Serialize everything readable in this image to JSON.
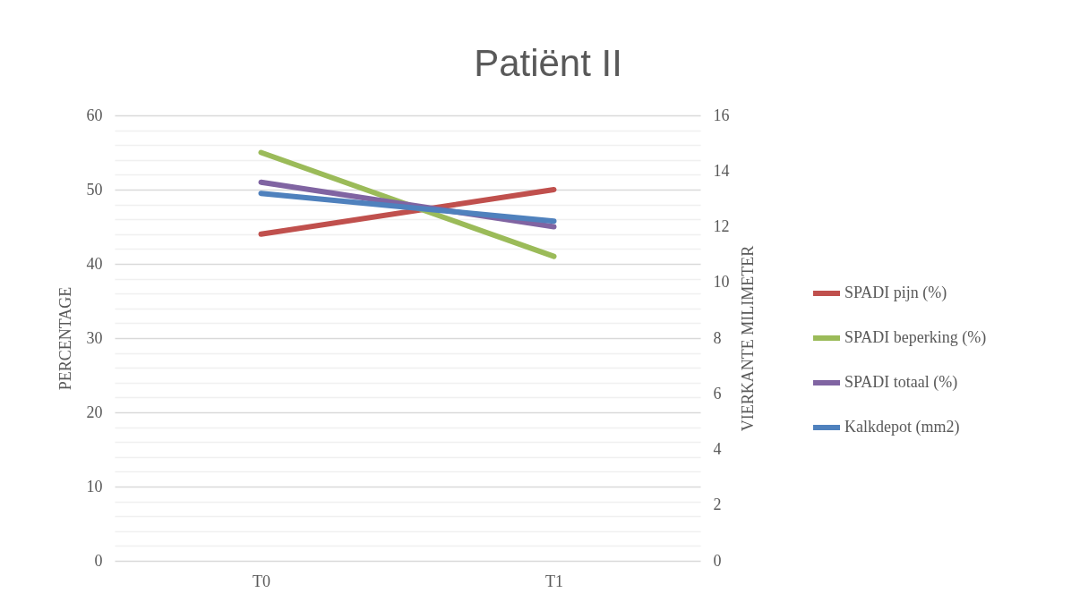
{
  "chart_data": {
    "type": "line",
    "title": "Patiënt II",
    "ylabel": "PERCENTAGE",
    "y2label": "VIERKANTE MILIMETER",
    "categories": [
      "T0",
      "T1"
    ],
    "series": [
      {
        "name": "SPADI pijn (%)",
        "color": "#c0504d",
        "values": [
          44,
          50
        ]
      },
      {
        "name": "SPADI beperking (%)",
        "color": "#9bbb59",
        "values": [
          55,
          41
        ]
      },
      {
        "name": "SPADI totaal (%)",
        "color": "#8064a2",
        "values": [
          51,
          45
        ]
      },
      {
        "name": "Kalkdepot (mm2)",
        "color": "#4f81bd",
        "values": [
          13.2,
          12.2
        ],
        "axis": "y2"
      }
    ],
    "ylim": [
      0,
      60
    ],
    "yticks": [
      0,
      {
        "value": 2,
        "label": null
      },
      {
        "value": 4,
        "label": null
      },
      {
        "value": 6,
        "label": null
      },
      {
        "value": 8,
        "label": null
      },
      10,
      {
        "value": 12,
        "label": null
      },
      {
        "value": 14,
        "label": null
      },
      {
        "value": 16,
        "label": null
      },
      {
        "value": 18,
        "label": null
      },
      20,
      {
        "value": 22,
        "label": null
      },
      {
        "value": 24,
        "label": null
      },
      {
        "value": 26,
        "label": null
      },
      {
        "value": 28,
        "label": null
      },
      30,
      {
        "value": 32,
        "label": null
      },
      {
        "value": 34,
        "label": null
      },
      {
        "value": 36,
        "label": null
      },
      {
        "value": 38,
        "label": null
      },
      40,
      {
        "value": 42,
        "label": null
      },
      {
        "value": 44,
        "label": null
      },
      {
        "value": 46,
        "label": null
      },
      {
        "value": 48,
        "label": null
      },
      50,
      {
        "value": 52,
        "label": null
      },
      {
        "value": 54,
        "label": null
      },
      {
        "value": 56,
        "label": null
      },
      {
        "value": 58,
        "label": null
      },
      60
    ],
    "y2lim": [
      0,
      16
    ],
    "y2ticks": [
      0,
      2,
      4,
      6,
      8,
      10,
      12,
      14,
      16
    ],
    "grid": "y",
    "legend": "right",
    "marker": "none",
    "line_style": "solid"
  }
}
